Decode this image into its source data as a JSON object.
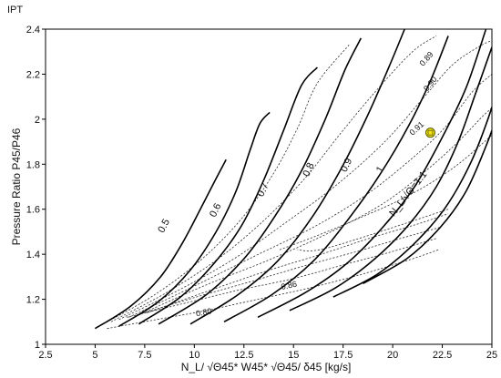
{
  "corner_label": "IPT",
  "chart_data": {
    "type": "line",
    "title": "",
    "xlabel": "N_L/ √Θ45* W45* √Θ45/ δ45 [kg/s]",
    "ylabel": "Pressure Ratio P45/P46",
    "xlim": [
      2.5,
      25
    ],
    "ylim": [
      1.0,
      2.4
    ],
    "xticks": [
      2.5,
      5,
      7.5,
      10,
      12.5,
      15,
      17.5,
      20,
      22.5,
      25
    ],
    "xtick_labels": [
      "2.5",
      "5",
      "7.5",
      "10",
      "12.5",
      "15",
      "17.5",
      "20",
      "22.5",
      "25"
    ],
    "yticks": [
      1.0,
      1.2,
      1.4,
      1.6,
      1.8,
      2.0,
      2.2,
      2.4
    ],
    "ytick_labels": [
      "1",
      "1.2",
      "1.4",
      "1.6",
      "1.8",
      "2",
      "2.2",
      "2.4"
    ],
    "grid": false,
    "speed_lines": [
      {
        "label": "0.5",
        "label_at": [
          8.6,
          1.52
        ],
        "points": [
          [
            5.0,
            1.07
          ],
          [
            6.8,
            1.17
          ],
          [
            8.3,
            1.3
          ],
          [
            9.4,
            1.45
          ],
          [
            10.3,
            1.6
          ],
          [
            11.0,
            1.72
          ],
          [
            11.6,
            1.82
          ]
        ]
      },
      {
        "label": "0.6",
        "label_at": [
          11.2,
          1.59
        ],
        "points": [
          [
            6.2,
            1.08
          ],
          [
            8.2,
            1.19
          ],
          [
            9.8,
            1.33
          ],
          [
            11.1,
            1.5
          ],
          [
            12.1,
            1.68
          ],
          [
            12.8,
            1.86
          ],
          [
            13.3,
            1.98
          ],
          [
            13.8,
            2.03
          ]
        ]
      },
      {
        "label": "0.7",
        "label_at": [
          13.6,
          1.68
        ],
        "points": [
          [
            7.2,
            1.09
          ],
          [
            9.3,
            1.21
          ],
          [
            11.0,
            1.36
          ],
          [
            12.4,
            1.53
          ],
          [
            13.5,
            1.73
          ],
          [
            14.5,
            1.95
          ],
          [
            15.4,
            2.15
          ],
          [
            16.2,
            2.23
          ]
        ]
      },
      {
        "label": "0.8",
        "label_at": [
          15.9,
          1.77
        ],
        "points": [
          [
            8.2,
            1.09
          ],
          [
            10.6,
            1.22
          ],
          [
            12.5,
            1.38
          ],
          [
            14.0,
            1.56
          ],
          [
            15.4,
            1.77
          ],
          [
            16.6,
            2.0
          ],
          [
            17.6,
            2.22
          ],
          [
            18.4,
            2.36
          ]
        ]
      },
      {
        "label": "0.9",
        "label_at": [
          17.8,
          1.79
        ],
        "points": [
          [
            9.8,
            1.09
          ],
          [
            12.2,
            1.22
          ],
          [
            14.2,
            1.37
          ],
          [
            15.9,
            1.56
          ],
          [
            17.4,
            1.78
          ],
          [
            18.7,
            2.01
          ],
          [
            19.8,
            2.23
          ],
          [
            20.6,
            2.4
          ]
        ]
      },
      {
        "label": "1",
        "label_at": [
          19.5,
          1.77
        ],
        "points": [
          [
            11.5,
            1.1
          ],
          [
            13.9,
            1.22
          ],
          [
            16.0,
            1.37
          ],
          [
            17.8,
            1.56
          ],
          [
            19.4,
            1.76
          ],
          [
            20.8,
            1.97
          ],
          [
            21.9,
            2.17
          ],
          [
            22.8,
            2.37
          ]
        ]
      },
      {
        "label": "N_L/√Θ=1.1",
        "label_at": [
          20.9,
          1.66
        ],
        "points": [
          [
            13.2,
            1.12
          ],
          [
            15.6,
            1.23
          ],
          [
            17.7,
            1.36
          ],
          [
            19.5,
            1.52
          ],
          [
            21.1,
            1.7
          ],
          [
            22.5,
            1.92
          ],
          [
            23.7,
            2.14
          ],
          [
            24.7,
            2.4
          ]
        ]
      },
      {
        "label": "",
        "label_at": null,
        "points": [
          [
            14.8,
            1.15
          ],
          [
            17.1,
            1.25
          ],
          [
            19.1,
            1.38
          ],
          [
            20.8,
            1.53
          ],
          [
            22.2,
            1.7
          ],
          [
            23.3,
            1.9
          ],
          [
            24.2,
            2.12
          ],
          [
            25.0,
            2.32
          ]
        ]
      },
      {
        "label": "",
        "label_at": null,
        "points": [
          [
            17.0,
            1.21
          ],
          [
            19.2,
            1.31
          ],
          [
            21.0,
            1.44
          ],
          [
            22.6,
            1.6
          ],
          [
            23.9,
            1.8
          ],
          [
            24.8,
            2.0
          ],
          [
            25.5,
            2.2
          ]
        ]
      },
      {
        "label": "",
        "label_at": null,
        "points": [
          [
            18.5,
            1.27
          ],
          [
            20.7,
            1.38
          ],
          [
            22.4,
            1.52
          ],
          [
            23.7,
            1.68
          ],
          [
            24.7,
            1.88
          ],
          [
            25.4,
            2.05
          ]
        ]
      }
    ],
    "efficiency_lines": [
      {
        "label": "",
        "label_at": null,
        "points": [
          [
            5.4,
            1.09
          ],
          [
            8.0,
            1.22
          ],
          [
            10.4,
            1.38
          ],
          [
            12.4,
            1.56
          ],
          [
            14.0,
            1.76
          ],
          [
            15.2,
            1.96
          ],
          [
            16.2,
            2.16
          ],
          [
            17.8,
            2.33
          ]
        ]
      },
      {
        "label": "",
        "label_at": null,
        "points": [
          [
            5.8,
            1.1
          ],
          [
            8.6,
            1.23
          ],
          [
            11.2,
            1.38
          ],
          [
            13.5,
            1.55
          ],
          [
            15.6,
            1.74
          ],
          [
            17.4,
            1.94
          ],
          [
            19.2,
            2.13
          ],
          [
            21.0,
            2.3
          ],
          [
            22.2,
            2.37
          ]
        ]
      },
      {
        "label": "0.89",
        "label_at": [
          21.8,
          2.26
        ],
        "points": [
          [
            6.2,
            1.11
          ],
          [
            9.2,
            1.24
          ],
          [
            12.0,
            1.38
          ],
          [
            14.6,
            1.54
          ],
          [
            17.2,
            1.71
          ],
          [
            19.6,
            1.9
          ],
          [
            21.6,
            2.1
          ],
          [
            23.0,
            2.24
          ],
          [
            24.3,
            2.32
          ],
          [
            25.0,
            2.35
          ]
        ]
      },
      {
        "label": "0.90",
        "label_at": [
          22.0,
          2.15
        ],
        "points": [
          [
            6.7,
            1.12
          ],
          [
            9.8,
            1.25
          ],
          [
            13.0,
            1.39
          ],
          [
            16.0,
            1.52
          ],
          [
            18.6,
            1.66
          ],
          [
            20.9,
            1.82
          ],
          [
            22.6,
            1.96
          ],
          [
            24.0,
            2.12
          ],
          [
            25.0,
            2.2
          ]
        ]
      },
      {
        "label": "0.91",
        "label_at": [
          21.3,
          1.95
        ],
        "points": [
          [
            7.2,
            1.13
          ],
          [
            10.5,
            1.26
          ],
          [
            13.9,
            1.38
          ],
          [
            16.9,
            1.5
          ],
          [
            19.6,
            1.63
          ],
          [
            21.8,
            1.78
          ],
          [
            23.3,
            1.9
          ],
          [
            24.5,
            2.01
          ],
          [
            25.0,
            2.05
          ]
        ]
      },
      {
        "label": "",
        "label_at": null,
        "points": [
          [
            14.3,
            1.42
          ],
          [
            16.4,
            1.49
          ],
          [
            18.3,
            1.56
          ],
          [
            20.1,
            1.63
          ],
          [
            21.8,
            1.71
          ],
          [
            23.3,
            1.8
          ],
          [
            24.5,
            1.89
          ],
          [
            25.0,
            1.93
          ]
        ]
      },
      {
        "label": "",
        "label_at": null,
        "points": [
          [
            7.6,
            1.14
          ],
          [
            10.8,
            1.24
          ],
          [
            13.8,
            1.33
          ],
          [
            16.4,
            1.4
          ],
          [
            18.8,
            1.47
          ],
          [
            21.1,
            1.53
          ],
          [
            22.8,
            1.58
          ]
        ]
      },
      {
        "label": "",
        "label_at": null,
        "points": [
          [
            7.1,
            1.13
          ],
          [
            10.1,
            1.21
          ],
          [
            12.9,
            1.28
          ],
          [
            15.6,
            1.35
          ],
          [
            18.1,
            1.41
          ],
          [
            20.4,
            1.47
          ],
          [
            22.4,
            1.52
          ]
        ]
      },
      {
        "label": "0.86",
        "label_at": [
          14.8,
          1.25
        ],
        "points": [
          [
            6.6,
            1.12
          ],
          [
            9.4,
            1.18
          ],
          [
            12.2,
            1.24
          ],
          [
            14.9,
            1.29
          ],
          [
            17.4,
            1.35
          ],
          [
            19.9,
            1.41
          ],
          [
            22.2,
            1.47
          ]
        ]
      },
      {
        "label": "0.80",
        "label_at": [
          10.5,
          1.13
        ],
        "points": [
          [
            5.6,
            1.07
          ],
          [
            8.1,
            1.11
          ],
          [
            10.6,
            1.15
          ],
          [
            13.2,
            1.2
          ],
          [
            15.8,
            1.25
          ],
          [
            18.4,
            1.31
          ],
          [
            21.0,
            1.38
          ],
          [
            22.3,
            1.42
          ]
        ]
      }
    ],
    "kink_line": {
      "points": [
        [
          22.8,
          1.6
        ],
        [
          16.8,
          1.43
        ],
        [
          15.2,
          1.42
        ]
      ]
    },
    "operating_point": {
      "x": 21.9,
      "y": 1.94,
      "color": "#f2e21c",
      "stroke": "#5a5a00"
    }
  }
}
